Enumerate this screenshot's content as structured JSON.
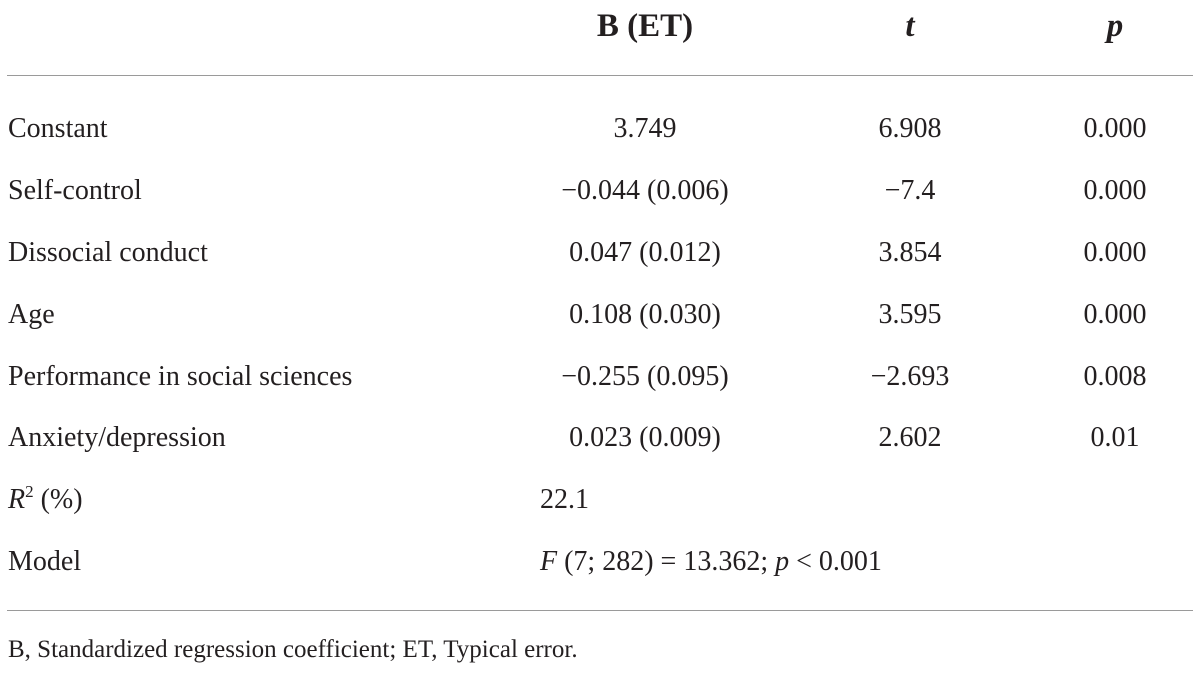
{
  "table": {
    "headers": {
      "b": "B (ET)",
      "t": "t",
      "p": "p"
    },
    "rows": [
      {
        "label": "Constant",
        "b": "3.749",
        "t": "6.908",
        "p": "0.000"
      },
      {
        "label": "Self-control",
        "b": "−0.044 (0.006)",
        "t": "−7.4",
        "p": "0.000"
      },
      {
        "label": "Dissocial conduct",
        "b": "0.047 (0.012)",
        "t": "3.854",
        "p": "0.000"
      },
      {
        "label": "Age",
        "b": "0.108 (0.030)",
        "t": "3.595",
        "p": "0.000"
      },
      {
        "label": "Performance in social sciences",
        "b": "−0.255 (0.095)",
        "t": "−2.693",
        "p": "0.008"
      },
      {
        "label": "Anxiety/depression",
        "b": "0.023 (0.009)",
        "t": "2.602",
        "p": "0.01"
      }
    ],
    "r2": {
      "label_var": "R",
      "label_sup": "2",
      "label_rest": " (%)",
      "value": "22.1"
    },
    "model": {
      "label": "Model",
      "f_symbol": "F",
      "f_text": " (7; 282) = 13.362; ",
      "p_symbol": "p",
      "p_text": " < 0.001"
    }
  },
  "footnote": "B, Standardized regression coefficient; ET, Typical error."
}
